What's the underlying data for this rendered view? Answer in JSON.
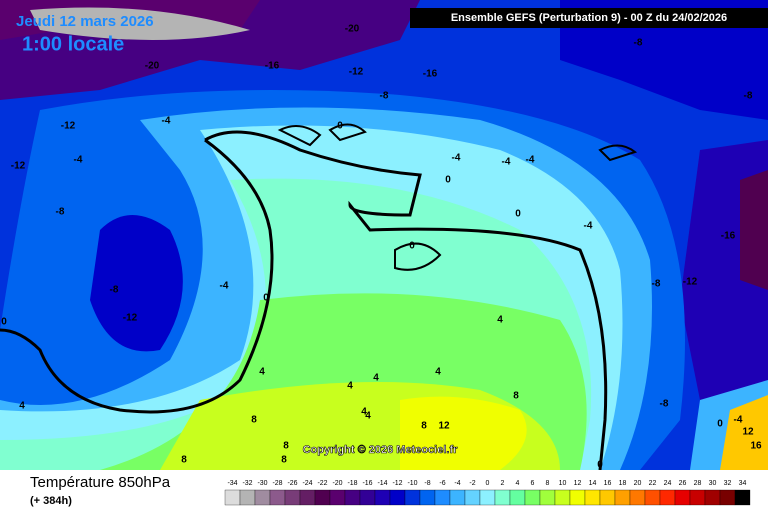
{
  "header": {
    "date": "Jeudi 12 mars 2026",
    "time": "1:00 locale",
    "run": "Ensemble GEFS  (Perturbation 9)  -  00 Z du 24/02/2026"
  },
  "copyright": "Copyright © 2026 Meteociel.fr",
  "footer": {
    "title": "Température 850hPa",
    "lead": "(+ 384h)"
  },
  "contour_labels": [
    -20,
    -20,
    -16,
    -12,
    -16,
    -8,
    -8,
    -8,
    -12,
    -4,
    0,
    -12,
    -4,
    -4,
    -4,
    -4,
    0,
    -8,
    0,
    -4,
    -16,
    0,
    -8,
    -4,
    0,
    -8,
    -12,
    -12,
    4,
    4,
    4,
    4,
    4,
    4,
    4,
    4,
    8,
    8,
    -8,
    8,
    12,
    0,
    -4,
    12,
    16,
    8,
    8,
    8,
    0,
    0
  ],
  "legend": {
    "ticks": [
      -34,
      -32,
      -30,
      -28,
      -26,
      -24,
      -22,
      -20,
      -18,
      -16,
      -14,
      -12,
      -10,
      -8,
      -6,
      -4,
      -2,
      0,
      2,
      4,
      6,
      8,
      10,
      12,
      14,
      16,
      18,
      20,
      22,
      24,
      26,
      28,
      30,
      32,
      34
    ],
    "colors": [
      "#dcdcdc",
      "#b4b4b4",
      "#a08ca0",
      "#8c5a8c",
      "#783c78",
      "#641e64",
      "#500050",
      "#5a006e",
      "#460082",
      "#320096",
      "#1e00b4",
      "#0000c8",
      "#0032dc",
      "#0064f0",
      "#1e8cff",
      "#3cb4ff",
      "#64d2ff",
      "#8cf0ff",
      "#80ffd0",
      "#64ffa0",
      "#78ff64",
      "#a0ff3c",
      "#c8ff1e",
      "#f0ff00",
      "#ffe600",
      "#ffc800",
      "#ffa000",
      "#ff7800",
      "#ff5000",
      "#ff2800",
      "#e60000",
      "#c80000",
      "#a00000",
      "#780000",
      "#000000"
    ]
  }
}
